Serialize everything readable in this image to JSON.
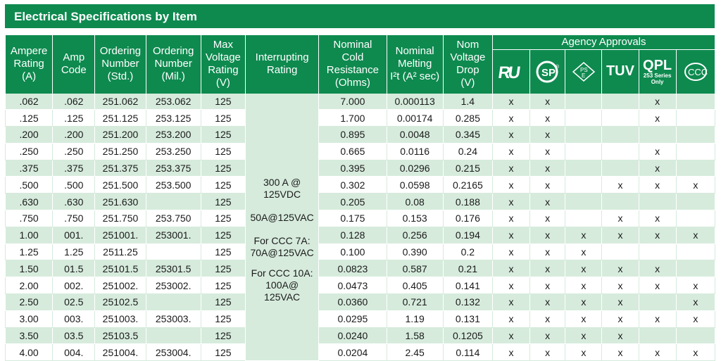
{
  "title": "Electrical Specifications by Item",
  "headers": {
    "ampere_rating": [
      "Ampere",
      "Rating",
      "(A)"
    ],
    "amp_code": [
      "Amp",
      "Code"
    ],
    "ordering_std": [
      "Ordering",
      "Number",
      "(Std.)"
    ],
    "ordering_mil": [
      "Ordering",
      "Number",
      "(Mil.)"
    ],
    "max_voltage": [
      "Max",
      "Voltage",
      "Rating",
      "(V)"
    ],
    "interrupting": [
      "Interrupting",
      "Rating"
    ],
    "cold_resistance": [
      "Nominal",
      "Cold",
      "Resistance",
      "(Ohms)"
    ],
    "melting": [
      "Nominal",
      "Melting",
      "I²t (A² sec)"
    ],
    "voltage_drop": [
      "Nom",
      "Voltage",
      "Drop",
      "(V)"
    ],
    "agency": "Agency Approvals",
    "agency_icons": [
      "ul-recognized-icon",
      "csa-icon",
      "pse-icon",
      "tuv-icon",
      "qpl-icon",
      "ccc-icon"
    ],
    "tuv_label": "TUV",
    "qpl_label": "QPL",
    "qpl_sub": [
      "253 Series",
      "Only"
    ]
  },
  "interrupting_rating": {
    "line1": "300 A @",
    "line2": "125VDC",
    "line3": "50A@125VAC",
    "line4": "For CCC 7A:",
    "line5": "70A@125VAC",
    "line6": "For CCC 10A:",
    "line7": "100A@",
    "line8": "125VAC"
  },
  "rows": [
    {
      "a": ".062",
      "code": ".062",
      "std": "251.062",
      "mil": "253.062",
      "v": "125",
      "res": "7.000",
      "i2t": "0.000113",
      "drop": "1.4",
      "ul": "x",
      "csa": "x",
      "pse": "",
      "tuv": "",
      "qpl": "x",
      "ccc": ""
    },
    {
      "a": ".125",
      "code": ".125",
      "std": "251.125",
      "mil": "253.125",
      "v": "125",
      "res": "1.700",
      "i2t": "0.00174",
      "drop": "0.285",
      "ul": "x",
      "csa": "x",
      "pse": "",
      "tuv": "",
      "qpl": "x",
      "ccc": ""
    },
    {
      "a": ".200",
      "code": ".200",
      "std": "251.200",
      "mil": "253.200",
      "v": "125",
      "res": "0.895",
      "i2t": "0.0048",
      "drop": "0.345",
      "ul": "x",
      "csa": "x",
      "pse": "",
      "tuv": "",
      "qpl": "",
      "ccc": ""
    },
    {
      "a": ".250",
      "code": ".250",
      "std": "251.250",
      "mil": "253.250",
      "v": "125",
      "res": "0.665",
      "i2t": "0.0116",
      "drop": "0.24",
      "ul": "x",
      "csa": "x",
      "pse": "",
      "tuv": "",
      "qpl": "x",
      "ccc": ""
    },
    {
      "a": ".375",
      "code": ".375",
      "std": "251.375",
      "mil": "253.375",
      "v": "125",
      "res": "0.395",
      "i2t": "0.0296",
      "drop": "0.215",
      "ul": "x",
      "csa": "x",
      "pse": "",
      "tuv": "",
      "qpl": "x",
      "ccc": ""
    },
    {
      "a": ".500",
      "code": ".500",
      "std": "251.500",
      "mil": "253.500",
      "v": "125",
      "res": "0.302",
      "i2t": "0.0598",
      "drop": "0.2165",
      "ul": "x",
      "csa": "x",
      "pse": "",
      "tuv": "x",
      "qpl": "x",
      "ccc": "x"
    },
    {
      "a": ".630",
      "code": ".630",
      "std": "251.630",
      "mil": "",
      "v": "125",
      "res": "0.205",
      "i2t": "0.08",
      "drop": "0.188",
      "ul": "x",
      "csa": "x",
      "pse": "",
      "tuv": "",
      "qpl": "",
      "ccc": ""
    },
    {
      "a": ".750",
      "code": ".750",
      "std": "251.750",
      "mil": "253.750",
      "v": "125",
      "res": "0.175",
      "i2t": "0.153",
      "drop": "0.176",
      "ul": "x",
      "csa": "x",
      "pse": "",
      "tuv": "x",
      "qpl": "x",
      "ccc": ""
    },
    {
      "a": "1.00",
      "code": "001.",
      "std": "251001.",
      "mil": "253001.",
      "v": "125",
      "res": "0.128",
      "i2t": "0.256",
      "drop": "0.194",
      "ul": "x",
      "csa": "x",
      "pse": "x",
      "tuv": "x",
      "qpl": "x",
      "ccc": "x"
    },
    {
      "a": "1.25",
      "code": "1.25",
      "std": "2511.25",
      "mil": "",
      "v": "125",
      "res": "0.100",
      "i2t": "0.390",
      "drop": "0.2",
      "ul": "x",
      "csa": "x",
      "pse": "x",
      "tuv": "",
      "qpl": "",
      "ccc": ""
    },
    {
      "a": "1.50",
      "code": "01.5",
      "std": "25101.5",
      "mil": "25301.5",
      "v": "125",
      "res": "0.0823",
      "i2t": "0.587",
      "drop": "0.21",
      "ul": "x",
      "csa": "x",
      "pse": "x",
      "tuv": "x",
      "qpl": "x",
      "ccc": ""
    },
    {
      "a": "2.00",
      "code": "002.",
      "std": "251002.",
      "mil": "253002.",
      "v": "125",
      "res": "0.0473",
      "i2t": "0.405",
      "drop": "0.141",
      "ul": "x",
      "csa": "x",
      "pse": "x",
      "tuv": "x",
      "qpl": "x",
      "ccc": "x"
    },
    {
      "a": "2.50",
      "code": "02.5",
      "std": "25102.5",
      "mil": "",
      "v": "125",
      "res": "0.0360",
      "i2t": "0.721",
      "drop": "0.132",
      "ul": "x",
      "csa": "x",
      "pse": "x",
      "tuv": "x",
      "qpl": "",
      "ccc": "x"
    },
    {
      "a": "3.00",
      "code": "003.",
      "std": "251003.",
      "mil": "253003.",
      "v": "125",
      "res": "0.0295",
      "i2t": "1.19",
      "drop": "0.131",
      "ul": "x",
      "csa": "x",
      "pse": "x",
      "tuv": "x",
      "qpl": "x",
      "ccc": "x"
    },
    {
      "a": "3.50",
      "code": "03.5",
      "std": "25103.5",
      "mil": "",
      "v": "125",
      "res": "0.0240",
      "i2t": "1.58",
      "drop": "0.1205",
      "ul": "x",
      "csa": "x",
      "pse": "x",
      "tuv": "x",
      "qpl": "",
      "ccc": ""
    },
    {
      "a": "4.00",
      "code": "004.",
      "std": "251004.",
      "mil": "253004.",
      "v": "125",
      "res": "0.0204",
      "i2t": "2.45",
      "drop": "0.114",
      "ul": "x",
      "csa": "x",
      "pse": "x",
      "tuv": "x",
      "qpl": "x",
      "ccc": "x"
    }
  ],
  "colors": {
    "header_green": "#0e8a4f",
    "stripe": "#d6ebdc"
  }
}
